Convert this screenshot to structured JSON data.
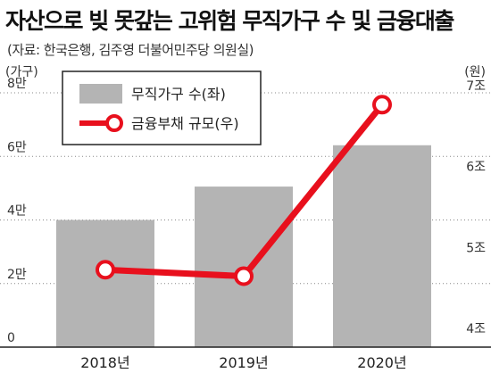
{
  "chart_data": {
    "type": "bar",
    "title": "자산으로 빚 못갚는 고위험 무직가구 수 및 금융대출",
    "subtitle": "(자료: 한국은행, 김주영 더불어민주당 의원실)",
    "categories": [
      "2018년",
      "2019년",
      "2020년"
    ],
    "left_axis": {
      "unit": "(가구)",
      "ticks": [
        "0",
        "2만",
        "4만",
        "6만",
        "8만"
      ],
      "range": [
        0,
        80000
      ]
    },
    "right_axis": {
      "unit": "(원)",
      "ticks": [
        "4조",
        "5조",
        "6조",
        "7조"
      ],
      "range": [
        4,
        7.8
      ]
    },
    "series": [
      {
        "name": "무직가구 수(좌)",
        "type": "bar",
        "axis": "left",
        "color": "#b4b4b4",
        "values": [
          40000,
          50500,
          63500
        ]
      },
      {
        "name": "금융부채 규모(우)",
        "type": "line",
        "axis": "right",
        "color": "#e8101d",
        "values": [
          4.78,
          4.7,
          6.82
        ]
      }
    ],
    "legend_position": "top-left",
    "grid": "dotted-horizontal"
  }
}
